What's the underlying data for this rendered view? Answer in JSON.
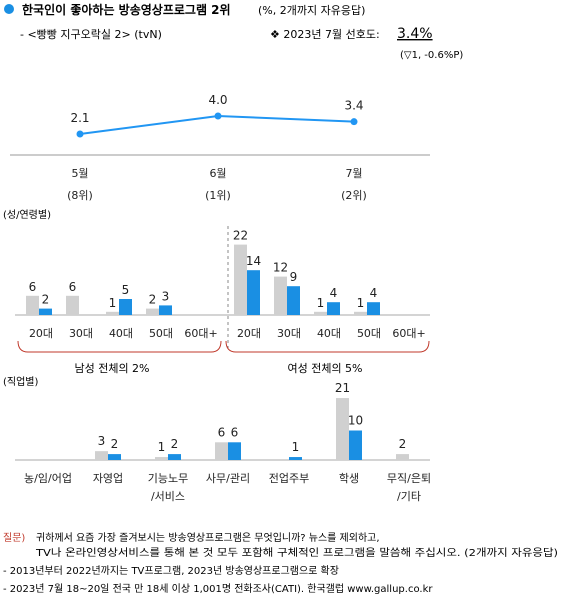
{
  "header": {
    "title": "한국인이 좋아하는 방송영상프로그램 2위",
    "title_note": "(%, 2개까지 자유응답)",
    "program": "- <빵빵 지구오락실 2> (tvN)",
    "pref_label": "❖  2023년 7월 선호도: ",
    "pref_value": "3.4%",
    "pref_change": "(▽1, -0.6%P)"
  },
  "colors": {
    "male_or_prev": "#d0d0d0",
    "current": "#1a8fe3",
    "line": "#2196f3",
    "bullet": "#1a8fe3",
    "footnote_red": "#c0392b"
  },
  "chart_data": [
    {
      "type": "line",
      "categories": [
        "5월",
        "6월",
        "7월"
      ],
      "sublabels": [
        "(8위)",
        "(1위)",
        "(2위)"
      ],
      "values": [
        2.1,
        4.0,
        3.4
      ]
    },
    {
      "type": "bar",
      "section_label": "(성/연령별)",
      "groups": [
        {
          "label": "남성 전체의 2%",
          "categories": [
            "20대",
            "30대",
            "40대",
            "50대",
            "60대+"
          ],
          "series": [
            {
              "values": [
                6,
                6,
                1,
                2,
                null
              ]
            },
            {
              "values": [
                2,
                null,
                5,
                3,
                null
              ]
            }
          ]
        },
        {
          "label": "여성 전체의 5%",
          "categories": [
            "20대",
            "30대",
            "40대",
            "50대",
            "60대+"
          ],
          "series": [
            {
              "values": [
                22,
                12,
                1,
                1,
                null
              ]
            },
            {
              "values": [
                14,
                9,
                4,
                4,
                null
              ]
            }
          ]
        }
      ],
      "ylim": [
        0,
        25
      ]
    },
    {
      "type": "bar",
      "section_label": "(직업별)",
      "categories": [
        "농/임/어업",
        "자영업",
        "기능노무/서비스",
        "사무/관리",
        "전업주부",
        "학생",
        "무직/은퇴/기타"
      ],
      "series": [
        {
          "values": [
            null,
            3,
            1,
            6,
            null,
            21,
            2
          ]
        },
        {
          "values": [
            null,
            2,
            2,
            6,
            1,
            10,
            null
          ]
        }
      ],
      "ylim": [
        0,
        25
      ]
    }
  ],
  "footnotes": {
    "q_label": "질문)",
    "q_line1": "귀하께서 요즘 가장 즐겨보시는 방송영상프로그램은 무엇입니까? 뉴스를 제외하고,",
    "q_line2": "TV나 온라인영상서비스를 통해 본 것 모두 포함해 구체적인 프로그램을 말씀해 주십시오. (2개까지 자유응답)",
    "note1": "- 2013년부터 2022년까지는 TV프로그램, 2023년 방송영상프로그램으로 확장",
    "note2": "- 2023년 7월 18~20일 전국 만 18세 이상 1,001명 전화조사(CATI). 한국갤럽 www.gallup.co.kr"
  }
}
